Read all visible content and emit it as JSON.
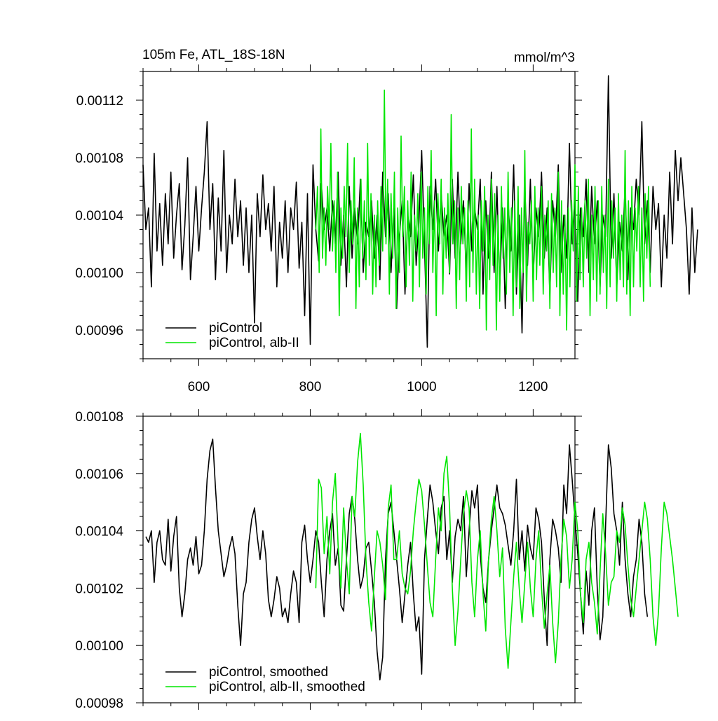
{
  "header": {
    "left_title": "105m Fe, ATL_18S-18N",
    "right_title": "mmol/m^3"
  },
  "colors": {
    "piControl": "#000000",
    "alb_II": "#00e600",
    "axis": "#000000",
    "background": "#ffffff"
  },
  "chart_data": [
    {
      "type": "line",
      "title": "105m Fe, ATL_18S-18N",
      "units": "mmol/m^3",
      "xlim": [
        500,
        1275
      ],
      "ylim": [
        0.00094,
        0.00114
      ],
      "x_major_ticks": [
        600,
        800,
        1000,
        1200
      ],
      "x_tick_labels": [
        "600",
        "800",
        "1000",
        "1200"
      ],
      "y_major_ticks": [
        0.00096,
        0.001,
        0.00104,
        0.00108,
        0.00112
      ],
      "y_tick_labels": [
        "0.00096",
        "0.00100",
        "0.00104",
        "0.00108",
        "0.00112"
      ],
      "legend_position": "bottom-left",
      "series": [
        {
          "name": "piControl",
          "color": "#000000",
          "x_start": 500,
          "x_step": 5,
          "values": [
            0.001075,
            0.00103,
            0.001045,
            0.00099,
            0.001083,
            0.001015,
            0.001048,
            0.001005,
            0.001055,
            0.00102,
            0.00107,
            0.00101,
            0.00104,
            0.001062,
            0.001002,
            0.001033,
            0.00108,
            0.000995,
            0.001025,
            0.00106,
            0.001015,
            0.001045,
            0.00107,
            0.001105,
            0.00103,
            0.001062,
            0.000995,
            0.001052,
            0.001015,
            0.001085,
            0.001,
            0.00104,
            0.00102,
            0.001065,
            0.001025,
            0.00105,
            0.001005,
            0.001045,
            0.001,
            0.00104,
            0.000965,
            0.001055,
            0.001025,
            0.001068,
            0.00103,
            0.001048,
            0.001015,
            0.00106,
            0.00099,
            0.001035,
            0.00101,
            0.00105,
            0.001,
            0.001045,
            0.00103,
            0.001063,
            0.001003,
            0.001035,
            0.00097,
            0.001055,
            0.00095,
            0.001075,
            0.00103,
            0.001008,
            0.001062,
            0.00103,
            0.001045,
            0.001015,
            0.00105,
            0.00102,
            0.00107,
            0.001005,
            0.00104,
            0.00099,
            0.00106,
            0.00101,
            0.001045,
            0.00102,
            0.001065,
            0.001,
            0.001035,
            0.001025,
            0.00105,
            0.00101,
            0.00104,
            0.000995,
            0.00107,
            0.001025,
            0.001055,
            0.001,
            0.001045,
            0.000975,
            0.001025,
            0.00105,
            0.000985,
            0.00104,
            0.001025,
            0.001068,
            0.001005,
            0.001035,
            0.001085,
            0.00102,
            0.000948,
            0.00106,
            0.00103,
            0.001065,
            0.001015,
            0.001055,
            0.001025,
            0.00104,
            0.000999,
            0.001065,
            0.00101,
            0.00107,
            0.00102,
            0.00105,
            0.001,
            0.001062,
            0.001015,
            0.001045,
            0.00103,
            0.001065,
            0.000985,
            0.00105,
            0.00101,
            0.00107,
            0.001,
            0.00106,
            0.00099,
            0.001045,
            0.000975,
            0.00105,
            0.001015,
            0.001075,
            0.000985,
            0.00104,
            0.000958,
            0.00106,
            0.001005,
            0.001065,
            0.000995,
            0.001045,
            0.001025,
            0.00107,
            0.00101,
            0.001045,
            0.000985,
            0.00105,
            0.001025,
            0.001075,
            0.001,
            0.00104,
            0.00101,
            0.00109,
            0.00102,
            0.001055,
            0.00098,
            0.001045,
            0.001025,
            0.001065,
            0.001,
            0.00106,
            0.00102,
            0.00105,
            0.00099,
            0.00104,
            0.001025,
            0.001137,
            0.00101,
            0.001055,
            0.00099,
            0.001035,
            0.001015,
            0.00106,
            0.000995,
            0.001045,
            0.00103,
            0.001065,
            0.00104,
            0.001105,
            0.00102,
            0.00105,
            0.001,
            0.00106,
            0.00103,
            0.001048,
            0.00099,
            0.00104,
            0.00101,
            0.00107,
            0.00102,
            0.001085,
            0.00105,
            0.00108,
            0.001055,
            0.00103,
            0.000985,
            0.001045,
            0.001,
            0.00103
          ]
        },
        {
          "name": "piControl, alb-II",
          "color": "#00e600",
          "x_start": 810,
          "x_step": 3,
          "values": [
            0.00103,
            0.00106,
            0.001,
            0.0011,
            0.00101,
            0.001045,
            0.001005,
            0.00106,
            0.00103,
            0.00109,
            0.001015,
            0.00105,
            0.001,
            0.00107,
            0.00097,
            0.001045,
            0.00101,
            0.00106,
            0.001025,
            0.00109,
            0.001,
            0.00105,
            0.00102,
            0.00108,
            0.000975,
            0.001045,
            0.00099,
            0.001065,
            0.00101,
            0.00105,
            0.000995,
            0.00109,
            0.001005,
            0.001055,
            0.000985,
            0.00104,
            0.00099,
            0.00105,
            0.001005,
            0.00106,
            0.001015,
            0.001127,
            0.00102,
            0.001065,
            0.000985,
            0.001055,
            0.00101,
            0.00107,
            0.000975,
            0.001045,
            0.001,
            0.001095,
            0.001025,
            0.00106,
            0.00099,
            0.00105,
            0.001005,
            0.00107,
            0.00098,
            0.00104,
            0.001015,
            0.001055,
            0.00099,
            0.00107,
            0.00101,
            0.001045,
            0.000985,
            0.00106,
            0.00102,
            0.001085,
            0.001,
            0.00105,
            0.00097,
            0.001055,
            0.00102,
            0.001065,
            0.000985,
            0.001045,
            0.00101,
            0.001055,
            0.001,
            0.00111,
            0.00102,
            0.00105,
            0.000975,
            0.001045,
            0.000995,
            0.00106,
            0.00102,
            0.001045,
            0.00098,
            0.00105,
            0.00099,
            0.0011,
            0.001,
            0.001065,
            0.000985,
            0.00104,
            0.000975,
            0.00105,
            0.001015,
            0.00106,
            0.00096,
            0.00104,
            0.000995,
            0.001065,
            0.001005,
            0.001055,
            0.00096,
            0.00104,
            0.00098,
            0.00106,
            0.00101,
            0.001045,
            0.000985,
            0.00107,
            0.001,
            0.001045,
            0.00097,
            0.00105,
            0.00099,
            0.00106,
            0.000975,
            0.001045,
            0.001,
            0.001085,
            0.00098,
            0.001035,
            0.00102,
            0.00105,
            0.00098,
            0.00106,
            0.000995,
            0.001045,
            0.001005,
            0.00106,
            0.000985,
            0.00104,
            0.001015,
            0.00105,
            0.000975,
            0.001055,
            0.001,
            0.001045,
            0.00099,
            0.00107,
            0.00097,
            0.00105,
            0.000985,
            0.00104,
            0.00096,
            0.001045,
            0.00099,
            0.00105,
            0.001015,
            0.001075,
            0.00098,
            0.00106,
            0.000995,
            0.001045,
            0.00099,
            0.00105,
            0.00101,
            0.001065,
            0.00097,
            0.00104,
            0.000995,
            0.00106,
            0.00098,
            0.00105,
            0.000985,
            0.00106,
            0.001,
            0.00104,
            0.000975,
            0.001065,
            0.00099,
            0.00105,
            0.00101,
            0.001045,
            0.00098,
            0.001055,
            0.000995,
            0.00104,
            0.00099,
            0.001085,
            0.000985,
            0.00105,
            0.00097,
            0.00106,
            0.00099,
            0.001045,
            0.001015,
            0.00106,
            0.00099,
            0.001045,
            0.00098,
            0.001055,
            0.00101,
            0.00106,
            0.00099
          ]
        }
      ]
    },
    {
      "type": "line",
      "xlim": [
        500,
        1275
      ],
      "ylim": [
        0.00098,
        0.00108
      ],
      "x_major_ticks": [
        600,
        800,
        1000,
        1200
      ],
      "y_major_ticks": [
        0.00098,
        0.001,
        0.00102,
        0.00104,
        0.00106,
        0.00108
      ],
      "y_tick_labels": [
        "0.00098",
        "0.00100",
        "0.00102",
        "0.00104",
        "0.00106",
        "0.00108"
      ],
      "legend_position": "bottom-left",
      "series": [
        {
          "name": "piControl, smoothed",
          "color": "#000000",
          "x_start": 505,
          "x_step": 5,
          "values": [
            0.001038,
            0.001036,
            0.00104,
            0.001022,
            0.001036,
            0.00104,
            0.00103,
            0.001028,
            0.001044,
            0.001026,
            0.001038,
            0.001045,
            0.00102,
            0.00101,
            0.001018,
            0.00103,
            0.001034,
            0.001028,
            0.001038,
            0.001025,
            0.001028,
            0.00104,
            0.001058,
            0.001068,
            0.001072,
            0.001055,
            0.00104,
            0.001032,
            0.001024,
            0.001028,
            0.001034,
            0.001038,
            0.001032,
            0.001014,
            0.001,
            0.001018,
            0.001022,
            0.001036,
            0.001044,
            0.001048,
            0.001038,
            0.00103,
            0.00104,
            0.001032,
            0.001016,
            0.00101,
            0.001016,
            0.001024,
            0.00102,
            0.00101,
            0.001013,
            0.001008,
            0.001018,
            0.001026,
            0.001022,
            0.001008,
            0.001036,
            0.001042,
            0.00103,
            0.001022,
            0.00103,
            0.00104,
            0.001036,
            0.001022,
            0.00101,
            0.00103,
            0.00104,
            0.001046,
            0.001028,
            0.001034,
            0.001014,
            0.001012,
            0.00103,
            0.001046,
            0.001052,
            0.001044,
            0.00103,
            0.00102,
            0.001024,
            0.001034,
            0.001036,
            0.001026,
            0.001015,
            0.000998,
            0.000988,
            0.000996,
            0.00103,
            0.001046,
            0.00105,
            0.00104,
            0.00103,
            0.00102,
            0.001008,
            0.001018,
            0.001028,
            0.001036,
            0.001018,
            0.001005,
            0.00101,
            0.00099,
            0.00103,
            0.001044,
            0.001056,
            0.00105,
            0.00104,
            0.001032,
            0.001048,
            0.001052,
            0.00103,
            0.00104,
            0.001022,
            0.001038,
            0.001044,
            0.00104,
            0.001052,
            0.001024,
            0.00104,
            0.001054,
            0.001048,
            0.001056,
            0.001032,
            0.00102,
            0.001015,
            0.00103,
            0.00104,
            0.001048,
            0.001056,
            0.001048,
            0.001046,
            0.001042,
            0.001035,
            0.001028,
            0.00104,
            0.001058,
            0.00103,
            0.00104,
            0.001026,
            0.001042,
            0.001034,
            0.00103,
            0.001048,
            0.001044,
            0.001036,
            0.001016,
            0.001,
            0.00103,
            0.001044,
            0.00104,
            0.001034,
            0.001022,
            0.001056,
            0.001046,
            0.00107,
            0.001058,
            0.001044,
            0.001032,
            0.001018,
            0.001004,
            0.001026,
            0.001014,
            0.00104,
            0.001048,
            0.00102,
            0.001002,
            0.00101,
            0.001042,
            0.00107,
            0.001062,
            0.001046,
            0.00104,
            0.001028,
            0.00105,
            0.00103,
            0.001018,
            0.00101,
            0.001024,
            0.00103,
            0.001044,
            0.001036,
            0.001018,
            0.00101
          ]
        },
        {
          "name": "piControl, alb-II, smoothed",
          "color": "#00e600",
          "x_start": 810,
          "x_step": 5,
          "values": [
            0.00102,
            0.001058,
            0.001055,
            0.001032,
            0.001045,
            0.001025,
            0.00105,
            0.00106,
            0.001035,
            0.00102,
            0.001048,
            0.00103,
            0.001018,
            0.001052,
            0.001045,
            0.001064,
            0.001074,
            0.001056,
            0.00103,
            0.001015,
            0.001005,
            0.001024,
            0.00104,
            0.001036,
            0.001028,
            0.001016,
            0.001048,
            0.001056,
            0.00103,
            0.00103,
            0.00104,
            0.001025,
            0.00102,
            0.001018,
            0.001026,
            0.00104,
            0.00105,
            0.001058,
            0.001054,
            0.001042,
            0.001028,
            0.001015,
            0.00101,
            0.00103,
            0.001048,
            0.00104,
            0.00106,
            0.001066,
            0.001048,
            0.00102,
            0.001,
            0.001012,
            0.00103,
            0.001046,
            0.001054,
            0.001048,
            0.001022,
            0.00101,
            0.00103,
            0.00104,
            0.001018,
            0.001005,
            0.00103,
            0.001044,
            0.001052,
            0.00104,
            0.001024,
            0.001034,
            0.001006,
            0.000992,
            0.001008,
            0.001024,
            0.001036,
            0.00102,
            0.001008,
            0.001022,
            0.001036,
            0.00102,
            0.00101,
            0.00103,
            0.00104,
            0.00102,
            0.001006,
            0.001018,
            0.001028,
            0.001008,
            0.000994,
            0.001008,
            0.00103,
            0.001044,
            0.001038,
            0.00102,
            0.00103,
            0.00105,
            0.00104,
            0.001018,
            0.001008,
            0.00103,
            0.001036,
            0.001022,
            0.001015,
            0.001004,
            0.001026,
            0.001046,
            0.001032,
            0.001014,
            0.001022,
            0.001024,
            0.00104,
            0.001036,
            0.001048,
            0.001042,
            0.001028,
            0.001016,
            0.00101,
            0.00102,
            0.00103,
            0.00104,
            0.00105,
            0.001044,
            0.00103,
            0.00101,
            0.001,
            0.001012,
            0.001034,
            0.00105,
            0.001046,
            0.001038,
            0.00103,
            0.00102,
            0.00101
          ]
        }
      ]
    }
  ]
}
